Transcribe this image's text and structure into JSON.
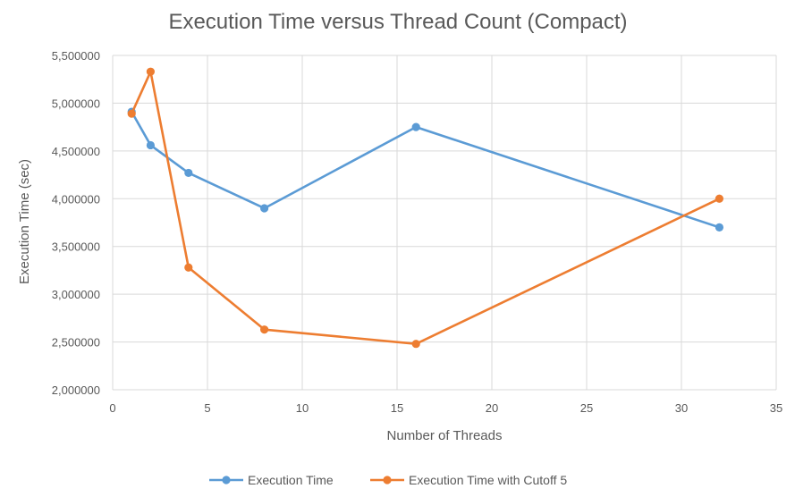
{
  "chart_data": {
    "type": "line",
    "title": "Execution Time versus Thread Count (Compact)",
    "xlabel": "Number of Threads",
    "ylabel": "Execution Time (sec)",
    "xlim": [
      0,
      35
    ],
    "ylim": [
      2000000,
      5500000
    ],
    "x_ticks": [
      0,
      5,
      10,
      15,
      20,
      25,
      30,
      35
    ],
    "x_tick_labels": [
      "0",
      "5",
      "10",
      "15",
      "20",
      "25",
      "30",
      "35"
    ],
    "y_ticks": [
      2000000,
      2500000,
      3000000,
      3500000,
      4000000,
      4500000,
      5000000,
      5500000
    ],
    "y_tick_labels": [
      "2,000000",
      "2,500000",
      "3,000000",
      "3,500000",
      "4,000000",
      "4,500000",
      "5,000000",
      "5,500000"
    ],
    "grid": true,
    "legend_position": "bottom",
    "series": [
      {
        "name": "Execution Time",
        "color": "#5B9BD5",
        "x": [
          1,
          2,
          4,
          8,
          16,
          32
        ],
        "values": [
          4910000,
          4560000,
          4270000,
          3900000,
          4750000,
          3700000
        ]
      },
      {
        "name": "Execution Time with Cutoff 5",
        "color": "#ED7D31",
        "x": [
          1,
          2,
          4,
          8,
          16,
          32
        ],
        "values": [
          4890000,
          5330000,
          3280000,
          2630000,
          2480000,
          4000000
        ]
      }
    ]
  }
}
